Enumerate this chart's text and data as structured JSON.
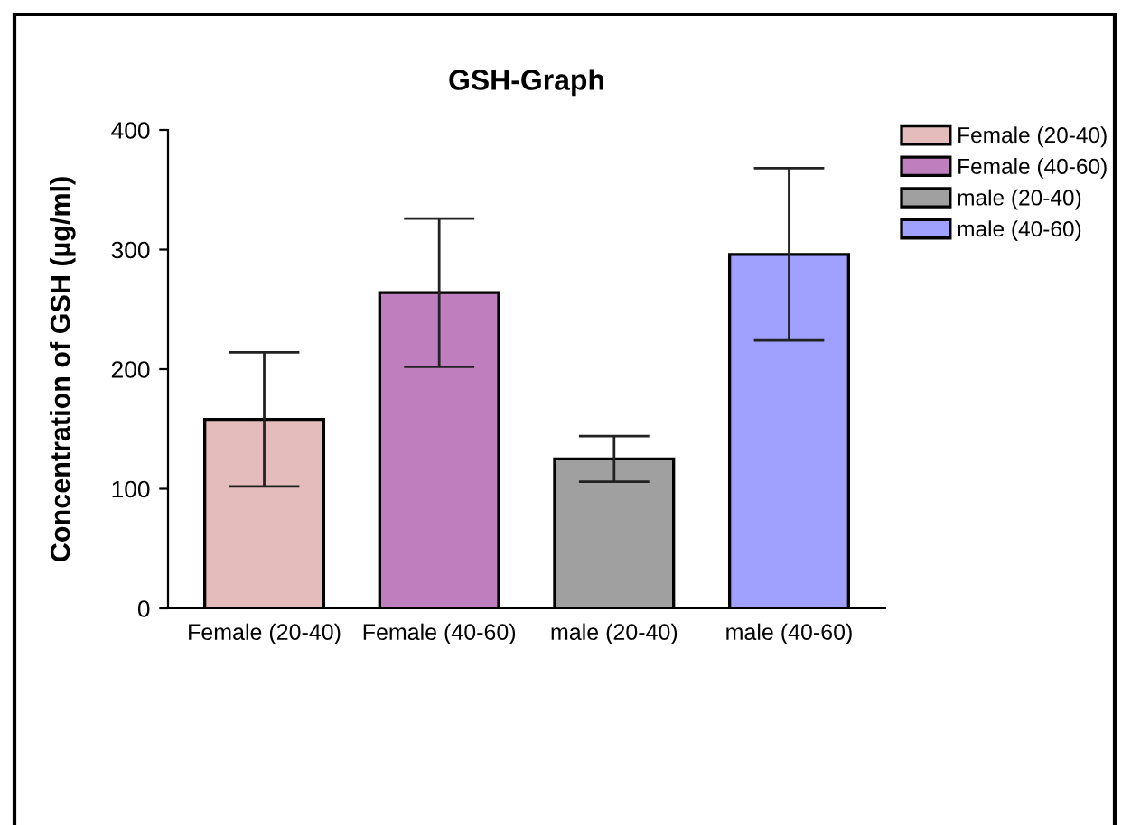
{
  "chart_data": {
    "type": "bar",
    "title": "GSH-Graph",
    "ylabel": "Concentration of GSH (µg/ml)",
    "categories": [
      "Female (20-40)",
      "Female (40-60)",
      "male (20-40)",
      "male (40-60)"
    ],
    "series": [
      {
        "name": "Female (20-40)",
        "color": "#e4bcbc",
        "values": [
          158,
          null,
          null,
          null
        ],
        "errors": [
          56,
          null,
          null,
          null
        ]
      },
      {
        "name": "Female (40-60)",
        "color": "#bf7fbf",
        "values": [
          null,
          264,
          null,
          null
        ],
        "errors": [
          null,
          62,
          null,
          null
        ]
      },
      {
        "name": "male (20-40)",
        "color": "#a0a0a0",
        "values": [
          null,
          null,
          125,
          null
        ],
        "errors": [
          null,
          null,
          19,
          null
        ]
      },
      {
        "name": "male (40-60)",
        "color": "#a0a0ff",
        "values": [
          null,
          null,
          null,
          296
        ],
        "errors": [
          null,
          null,
          null,
          72
        ]
      }
    ],
    "ylim": [
      0,
      400
    ],
    "yticks": [
      0,
      100,
      200,
      300,
      400
    ],
    "legend": "right",
    "grid": false
  }
}
